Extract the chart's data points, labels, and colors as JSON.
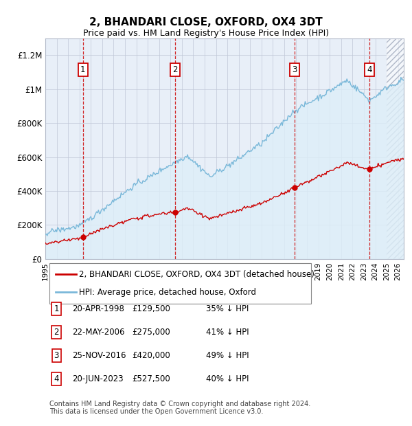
{
  "title": "2, BHANDARI CLOSE, OXFORD, OX4 3DT",
  "subtitle": "Price paid vs. HM Land Registry's House Price Index (HPI)",
  "footer": "Contains HM Land Registry data © Crown copyright and database right 2024.\nThis data is licensed under the Open Government Licence v3.0.",
  "legend_line1": "2, BHANDARI CLOSE, OXFORD, OX4 3DT (detached house)",
  "legend_line2": "HPI: Average price, detached house, Oxford",
  "sales": [
    {
      "num": 1,
      "date": "20-APR-1998",
      "price": 129500,
      "pct": "35%",
      "year": 1998.3
    },
    {
      "num": 2,
      "date": "22-MAY-2006",
      "price": 275000,
      "pct": "41%",
      "year": 2006.38
    },
    {
      "num": 3,
      "date": "25-NOV-2016",
      "price": 420000,
      "pct": "49%",
      "year": 2016.9
    },
    {
      "num": 4,
      "date": "20-JUN-2023",
      "price": 527500,
      "pct": "40%",
      "year": 2023.47
    }
  ],
  "hpi_color": "#7ab8d9",
  "sale_color": "#cc0000",
  "hpi_fill": "#ddeef8",
  "plot_bg": "#e8eff8",
  "ylim": [
    0,
    1300000
  ],
  "xlim_start": 1995.0,
  "xlim_end": 2026.5,
  "future_start": 2025.0,
  "hpi_seed": 42,
  "pp_seed": 123
}
